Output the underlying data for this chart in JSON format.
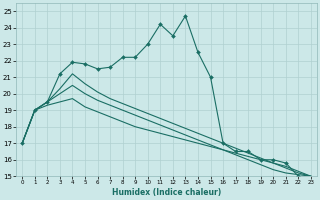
{
  "title": "",
  "xlabel": "Humidex (Indice chaleur)",
  "ylabel": "",
  "bg_color": "#cce8e8",
  "grid_color": "#b0d0d0",
  "line_color": "#1a6e64",
  "xlim": [
    -0.5,
    23.5
  ],
  "ylim": [
    15,
    25.5
  ],
  "xticks": [
    0,
    1,
    2,
    3,
    4,
    5,
    6,
    7,
    8,
    9,
    10,
    11,
    12,
    13,
    14,
    15,
    16,
    17,
    18,
    19,
    20,
    21,
    22,
    23
  ],
  "yticks": [
    15,
    16,
    17,
    18,
    19,
    20,
    21,
    22,
    23,
    24,
    25
  ],
  "series": [
    {
      "x": [
        0,
        1,
        2,
        3,
        4,
        5,
        6,
        7,
        8,
        9,
        10,
        11,
        12,
        13,
        14,
        15,
        16,
        17,
        18,
        19,
        20,
        21,
        22
      ],
      "y": [
        17.0,
        19.0,
        19.5,
        21.2,
        21.9,
        21.8,
        21.5,
        21.6,
        22.2,
        22.2,
        23.0,
        24.2,
        23.5,
        24.7,
        22.5,
        21.0,
        17.0,
        16.5,
        16.5,
        16.0,
        16.0,
        15.8,
        15.0
      ],
      "marker": true
    },
    {
      "x": [
        0,
        1,
        2,
        3,
        4,
        5,
        6,
        7,
        8,
        9,
        10,
        11,
        12,
        13,
        14,
        15,
        16,
        17,
        18,
        19,
        20,
        21,
        22,
        23
      ],
      "y": [
        17.0,
        19.0,
        19.3,
        19.5,
        19.7,
        19.2,
        18.9,
        18.6,
        18.3,
        18.0,
        17.8,
        17.6,
        17.4,
        17.2,
        17.0,
        16.8,
        16.6,
        16.4,
        16.2,
        16.0,
        15.8,
        15.6,
        15.3,
        15.0
      ],
      "marker": false
    },
    {
      "x": [
        0,
        1,
        2,
        3,
        4,
        5,
        6,
        7,
        8,
        9,
        10,
        11,
        12,
        13,
        14,
        15,
        16,
        17,
        18,
        19,
        20,
        21,
        22,
        23
      ],
      "y": [
        17.0,
        19.0,
        19.5,
        20.0,
        20.5,
        20.0,
        19.6,
        19.3,
        19.0,
        18.7,
        18.4,
        18.1,
        17.8,
        17.5,
        17.2,
        16.9,
        16.6,
        16.3,
        16.0,
        15.7,
        15.4,
        15.2,
        15.1,
        15.0
      ],
      "marker": false
    },
    {
      "x": [
        0,
        1,
        2,
        3,
        4,
        5,
        6,
        7,
        8,
        9,
        10,
        11,
        12,
        13,
        14,
        15,
        16,
        17,
        18,
        19,
        20,
        21,
        22,
        23
      ],
      "y": [
        17.0,
        19.0,
        19.5,
        20.3,
        21.2,
        20.6,
        20.1,
        19.7,
        19.4,
        19.1,
        18.8,
        18.5,
        18.2,
        17.9,
        17.6,
        17.3,
        17.0,
        16.7,
        16.4,
        16.1,
        15.8,
        15.5,
        15.2,
        15.0
      ],
      "marker": false
    }
  ]
}
